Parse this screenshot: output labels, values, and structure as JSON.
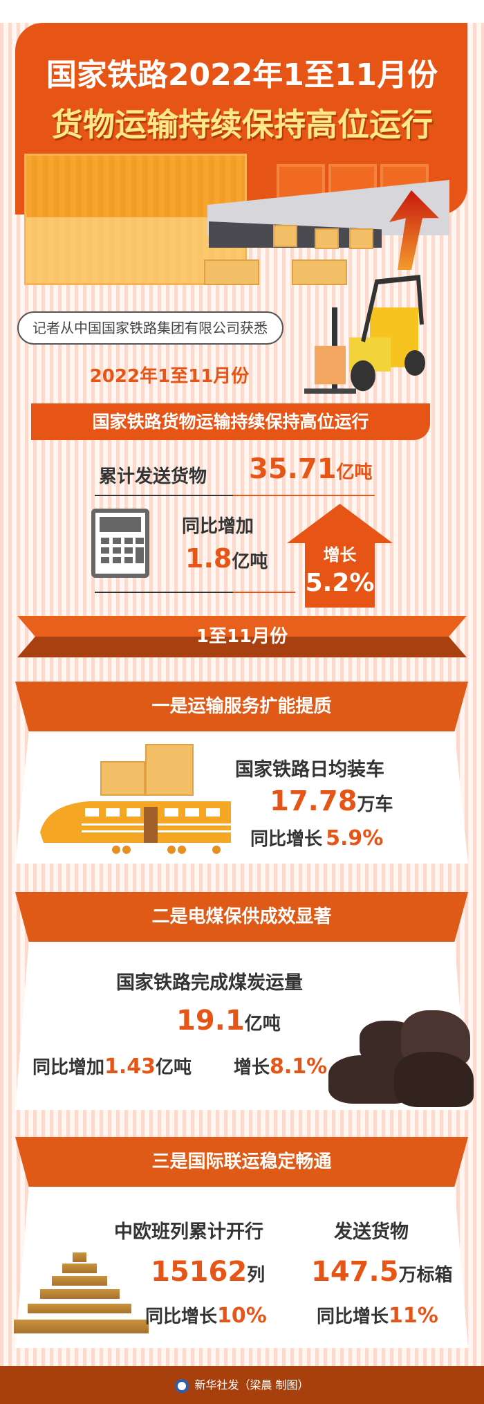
{
  "header": {
    "title_line1": "国家铁路2022年1至11月份",
    "title_line2": "货物运输持续保持高位运行"
  },
  "source_note": "记者从中国国家铁路集团有限公司获悉",
  "date_label": "2022年1至11月份",
  "summary": {
    "banner": "国家铁路货物运输持续保持高位运行",
    "cumulative_label": "累计发送货物",
    "cumulative_value": "35.71",
    "cumulative_unit": "亿吨",
    "yoy_label": "同比增加",
    "yoy_value": "1.8",
    "yoy_unit": "亿吨",
    "growth_label": "增长",
    "growth_value": "5.2%"
  },
  "period_ribbon": "1至11月份",
  "sections": [
    {
      "title": "一是运输服务扩能提质",
      "metric_label": "国家铁路日均装车",
      "value": "17.78",
      "unit": "万车",
      "yoy_label": "同比增长",
      "yoy_value": "5.9%"
    },
    {
      "title": "二是电煤保供成效显著",
      "metric_label": "国家铁路完成煤炭运量",
      "value": "19.1",
      "unit": "亿吨",
      "yoy_label": "同比增加",
      "yoy_value": "1.43",
      "yoy_unit": "亿吨",
      "growth_label": "增长",
      "growth_value": "8.1%"
    },
    {
      "title": "三是国际联运稳定畅通",
      "left_label": "中欧班列累计开行",
      "left_value": "15162",
      "left_unit": "列",
      "left_yoy_label": "同比增长",
      "left_yoy_value": "10%",
      "right_label": "发送货物",
      "right_value": "147.5",
      "right_unit": "万标箱",
      "right_yoy_label": "同比增长",
      "right_yoy_value": "11%"
    }
  ],
  "footer": {
    "credit": "新华社发（梁晨 制图）"
  },
  "colors": {
    "accent": "#e65515",
    "title_yellow": "#ffe88a",
    "footer": "#a8400d"
  }
}
